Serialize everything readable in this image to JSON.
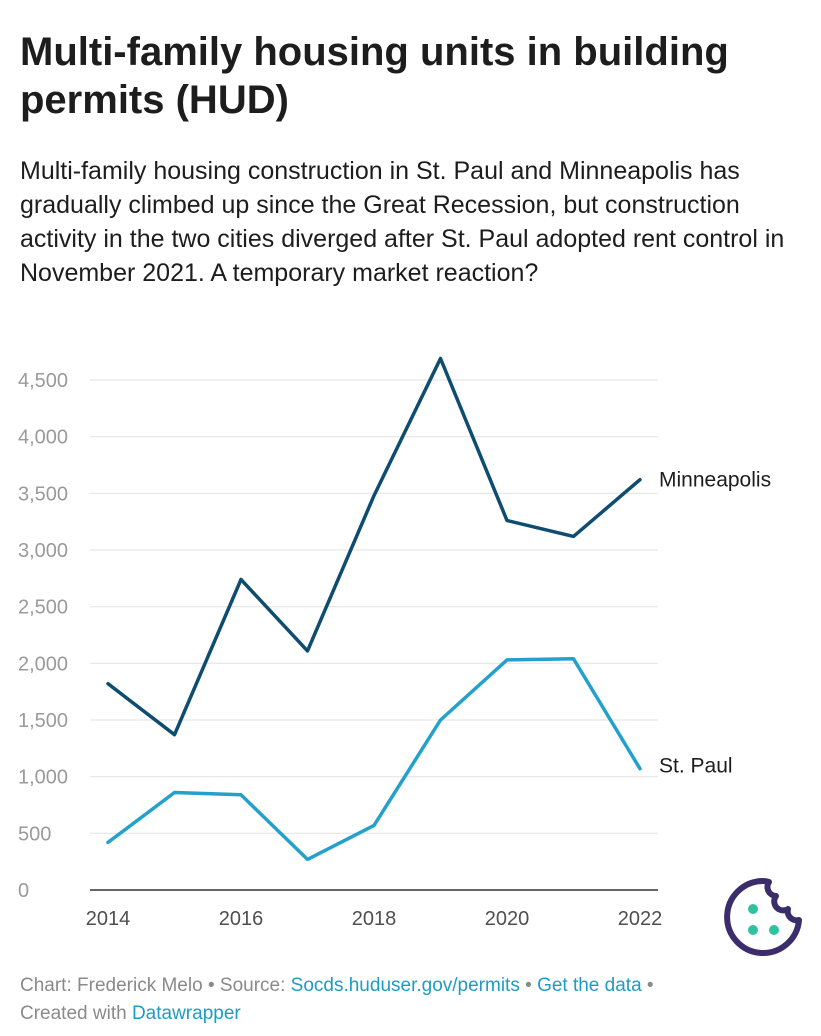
{
  "title": "Multi-family housing units in building permits (HUD)",
  "subtitle": "Multi-family housing construction in St. Paul and Minneapolis has gradually climbed up since the Great Recession, but construction activity in the two cities diverged after St. Paul adopted rent control in November 2021. A temporary market reaction?",
  "footer": {
    "chart_by": "Chart: Frederick Melo",
    "source_label": "Source:",
    "source_link": "Socds.huduser.gov/permits",
    "get_data": "Get the data",
    "created_with": "Created with",
    "tool": "Datawrapper",
    "separator": "•"
  },
  "colors": {
    "minneapolis": "#0e4d70",
    "st_paul": "#23a1cc",
    "grid": "#e6e6e6",
    "link": "#1e9cc4",
    "cookie": "#3b2d6b",
    "cookie_dots": "#2fc2a1"
  },
  "chart_data": {
    "type": "line",
    "title": "Multi-family housing units in building permits (HUD)",
    "xlabel": "",
    "ylabel": "",
    "x": [
      2014,
      2015,
      2016,
      2017,
      2018,
      2019,
      2020,
      2021,
      2022
    ],
    "xticks": [
      "2014",
      "2016",
      "2018",
      "2020",
      "2022"
    ],
    "yticks": [
      "0",
      "500",
      "1,000",
      "1,500",
      "2,000",
      "2,500",
      "3,000",
      "3,500",
      "4,000",
      "4,500"
    ],
    "ylim": [
      0,
      4500
    ],
    "grid": true,
    "legend": "direct labels at right end of lines",
    "series": [
      {
        "name": "Minneapolis",
        "values": [
          1820,
          1370,
          2740,
          2110,
          3480,
          4690,
          3260,
          3120,
          3620
        ]
      },
      {
        "name": "St. Paul",
        "values": [
          420,
          860,
          840,
          270,
          570,
          1500,
          2030,
          2040,
          1070
        ]
      }
    ]
  }
}
